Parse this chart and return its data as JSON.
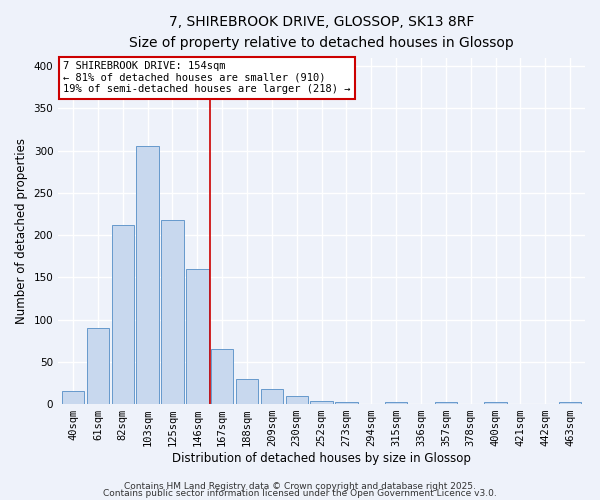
{
  "title": "7, SHIREBROOK DRIVE, GLOSSOP, SK13 8RF",
  "subtitle": "Size of property relative to detached houses in Glossop",
  "xlabel": "Distribution of detached houses by size in Glossop",
  "ylabel": "Number of detached properties",
  "bar_labels": [
    "40sqm",
    "61sqm",
    "82sqm",
    "103sqm",
    "125sqm",
    "146sqm",
    "167sqm",
    "188sqm",
    "209sqm",
    "230sqm",
    "252sqm",
    "273sqm",
    "294sqm",
    "315sqm",
    "336sqm",
    "357sqm",
    "378sqm",
    "400sqm",
    "421sqm",
    "442sqm",
    "463sqm"
  ],
  "bar_values": [
    15,
    90,
    212,
    306,
    218,
    160,
    65,
    30,
    18,
    9,
    4,
    2,
    0,
    3,
    0,
    3,
    0,
    2,
    0,
    0,
    2
  ],
  "bar_color": "#c8d8ee",
  "bar_edge_color": "#6699cc",
  "background_color": "#eef2fa",
  "grid_color": "#ffffff",
  "vline_x_index": 5,
  "vline_color": "#cc0000",
  "ylim": [
    0,
    410
  ],
  "yticks": [
    0,
    50,
    100,
    150,
    200,
    250,
    300,
    350,
    400
  ],
  "annotation_title": "7 SHIREBROOK DRIVE: 154sqm",
  "annotation_line1": "← 81% of detached houses are smaller (910)",
  "annotation_line2": "19% of semi-detached houses are larger (218) →",
  "annotation_box_facecolor": "#ffffff",
  "annotation_box_edgecolor": "#cc0000",
  "footer1": "Contains HM Land Registry data © Crown copyright and database right 2025.",
  "footer2": "Contains public sector information licensed under the Open Government Licence v3.0.",
  "title_fontsize": 10,
  "subtitle_fontsize": 8.5,
  "axis_label_fontsize": 8.5,
  "tick_fontsize": 7.5,
  "footer_fontsize": 6.5,
  "annot_fontsize": 7.5
}
